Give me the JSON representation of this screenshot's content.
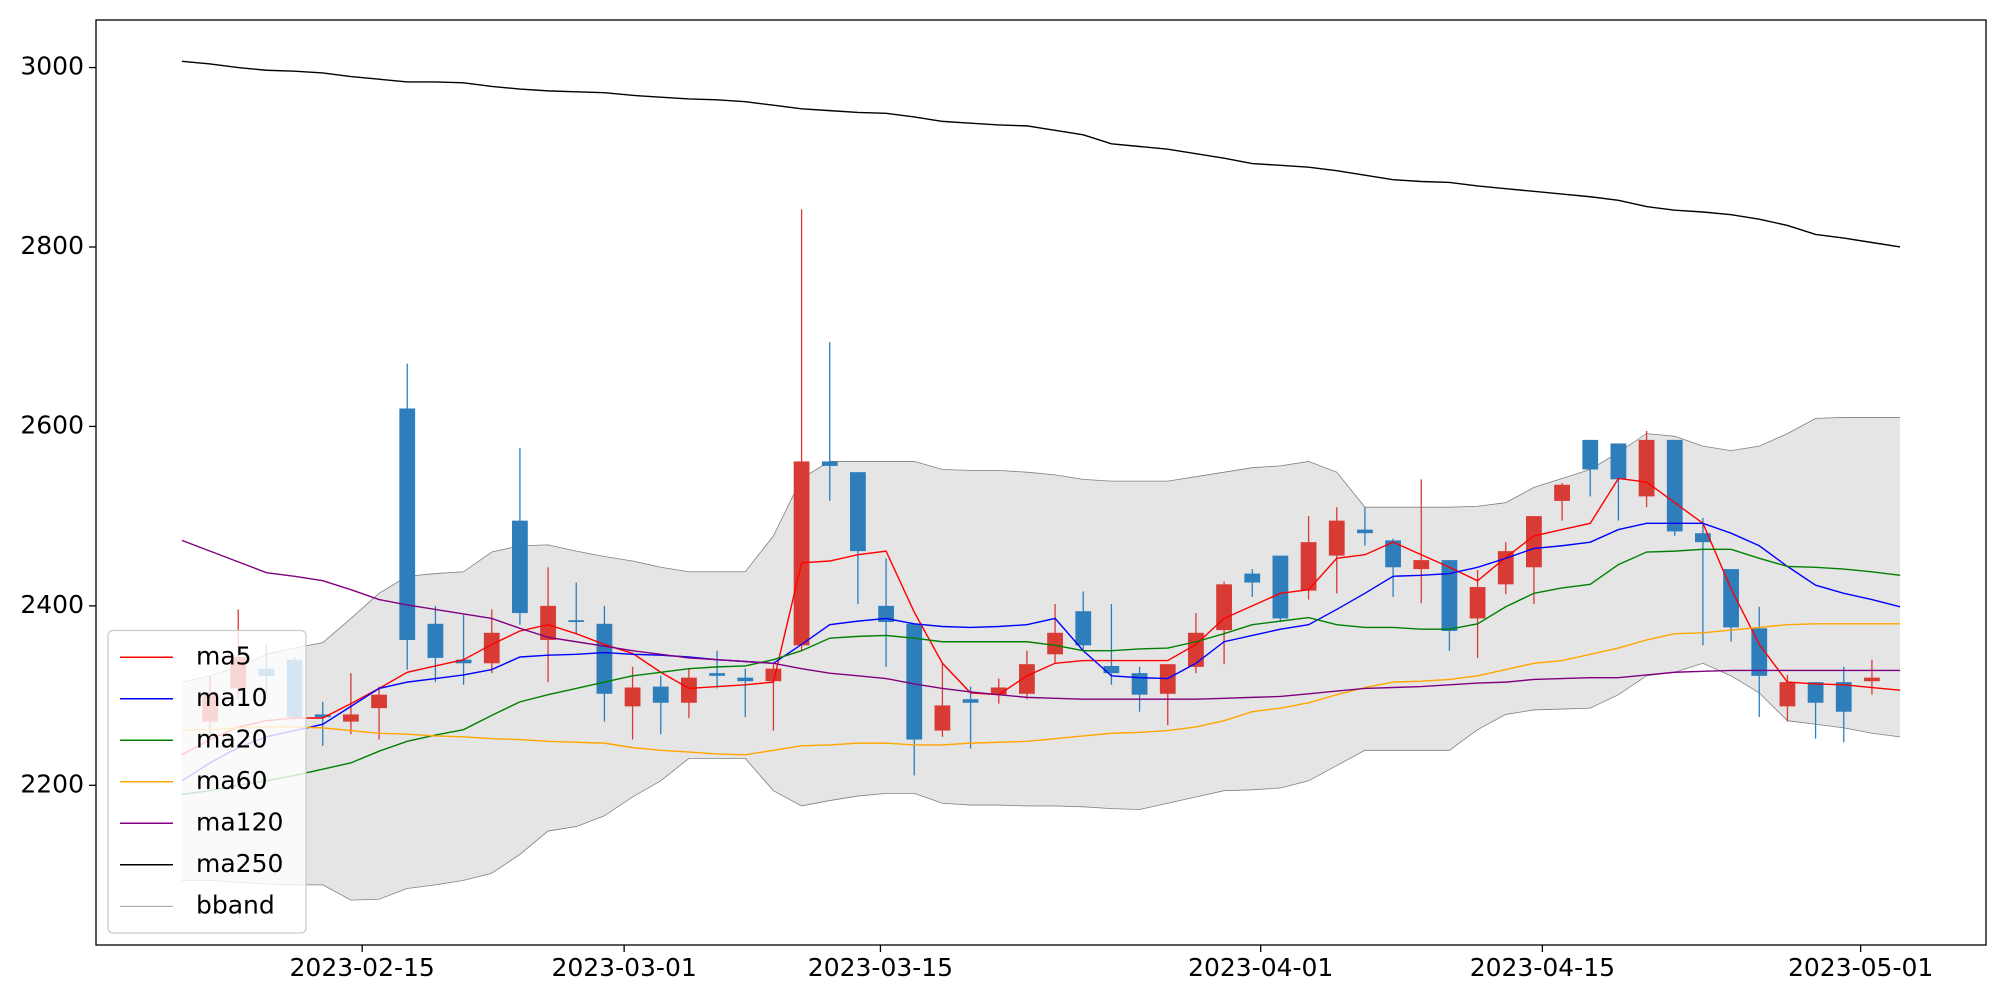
{
  "chart_data": {
    "type": "candlestick",
    "categories": [
      null,
      null,
      null,
      null,
      null,
      null,
      null,
      null,
      null,
      null,
      null,
      null,
      null,
      null,
      null,
      null,
      null,
      null,
      null,
      null,
      null,
      null,
      null,
      null,
      null,
      null,
      null,
      null,
      null,
      null,
      null,
      null,
      null,
      null,
      null,
      null,
      null,
      null,
      null,
      null,
      null,
      null,
      null,
      null,
      null,
      null,
      null,
      null,
      null,
      null,
      null,
      null,
      null,
      null,
      null,
      null,
      null,
      null,
      null,
      null,
      null,
      null
    ],
    "open": [
      null,
      2271,
      2308,
      2330,
      2340,
      2279,
      2271,
      2286,
      2620,
      2380,
      2340,
      2336,
      2495,
      2362,
      2384,
      2380,
      2288,
      2310,
      2292,
      2325,
      2320,
      2316,
      2356,
      2561,
      2549,
      2400,
      2380,
      2261,
      2296,
      2301,
      2302,
      2346,
      2394,
      2333,
      2325,
      2302,
      2332,
      2373,
      2436,
      2456,
      2417,
      2456,
      2485,
      2473,
      2441,
      2451,
      2386,
      2424,
      2443,
      2517,
      2585,
      2581,
      2522,
      2585,
      2481,
      2441,
      2375,
      2288,
      2315,
      2315,
      2316,
      null
    ],
    "high": [
      null,
      2322,
      2396,
      2357,
      2343,
      2293,
      2325,
      2310,
      2670,
      2400,
      2390,
      2396,
      2576,
      2443,
      2426,
      2400,
      2332,
      2322,
      2330,
      2350,
      2330,
      2335,
      2842,
      2694,
      2549,
      2453,
      2380,
      2336,
      2310,
      2319,
      2350,
      2402,
      2416,
      2402,
      2332,
      2335,
      2392,
      2427,
      2441,
      2456,
      2500,
      2510,
      2510,
      2475,
      2541,
      2451,
      2440,
      2471,
      2500,
      2537,
      2585,
      2581,
      2595,
      2585,
      2498,
      2441,
      2399,
      2323,
      2315,
      2332,
      2340,
      null
    ],
    "low": [
      null,
      2258,
      2296,
      2301,
      2272,
      2244,
      2257,
      2251,
      2329,
      2315,
      2312,
      2325,
      2379,
      2315,
      2369,
      2271,
      2251,
      2257,
      2275,
      2308,
      2276,
      2261,
      2350,
      2517,
      2402,
      2332,
      2211,
      2254,
      2241,
      2291,
      2296,
      2336,
      2350,
      2312,
      2282,
      2267,
      2325,
      2335,
      2410,
      2382,
      2407,
      2414,
      2467,
      2410,
      2403,
      2350,
      2342,
      2413,
      2402,
      2495,
      2522,
      2495,
      2510,
      2478,
      2356,
      2360,
      2276,
      2271,
      2252,
      2248,
      2301,
      null
    ],
    "close": [
      null,
      2303,
      2343,
      2322,
      2276,
      2276,
      2279,
      2301,
      2362,
      2342,
      2336,
      2370,
      2392,
      2400,
      2382,
      2302,
      2309,
      2292,
      2320,
      2322,
      2316,
      2330,
      2561,
      2556,
      2461,
      2382,
      2251,
      2289,
      2292,
      2309,
      2335,
      2370,
      2356,
      2325,
      2301,
      2335,
      2370,
      2424,
      2426,
      2386,
      2471,
      2495,
      2481,
      2443,
      2451,
      2372,
      2421,
      2461,
      2500,
      2535,
      2552,
      2541,
      2585,
      2483,
      2471,
      2376,
      2322,
      2315,
      2292,
      2282,
      2320,
      null
    ],
    "up_color": "#d83a34",
    "down_color": "#2e7ebc",
    "series": [
      {
        "name": "ma5",
        "color": "red",
        "values": [
          2234,
          2251,
          2265,
          2272,
          2275,
          2275,
          2291,
          2308,
          2326,
          2333,
          2340,
          2357,
          2372,
          2379,
          2369,
          2357,
          2347,
          2326,
          2308,
          2310,
          2312,
          2315,
          2448,
          2450,
          2457,
          2461,
          2393,
          2336,
          2303,
          2301,
          2322,
          2336,
          2339,
          2339,
          2339,
          2339,
          2357,
          2386,
          2400,
          2414,
          2418,
          2453,
          2457,
          2471,
          2457,
          2443,
          2428,
          2454,
          2478,
          2485,
          2492,
          2542,
          2538,
          2515,
          2492,
          2419,
          2357,
          2315,
          2313,
          2312,
          2309,
          2306
        ]
      },
      {
        "name": "ma10",
        "color": "blue",
        "values": [
          2205,
          2225,
          2242,
          2254,
          2261,
          2268,
          2288,
          2308,
          2315,
          2319,
          2323,
          2329,
          2343,
          2345,
          2346,
          2348,
          2346,
          2345,
          2343,
          2340,
          2338,
          2336,
          2357,
          2379,
          2383,
          2386,
          2380,
          2377,
          2376,
          2377,
          2379,
          2386,
          2350,
          2322,
          2320,
          2319,
          2336,
          2360,
          2367,
          2374,
          2379,
          2396,
          2414,
          2433,
          2434,
          2436,
          2443,
          2453,
          2464,
          2467,
          2471,
          2485,
          2492,
          2492,
          2492,
          2481,
          2467,
          2444,
          2423,
          2414,
          2407,
          2399
        ]
      },
      {
        "name": "ma20",
        "color": "green",
        "values": [
          2190,
          2194,
          2200,
          2205,
          2211,
          2218,
          2225,
          2238,
          2249,
          2256,
          2262,
          2278,
          2293,
          2301,
          2308,
          2315,
          2322,
          2326,
          2330,
          2332,
          2333,
          2340,
          2350,
          2364,
          2366,
          2367,
          2364,
          2360,
          2360,
          2360,
          2360,
          2356,
          2350,
          2350,
          2352,
          2353,
          2360,
          2369,
          2379,
          2383,
          2387,
          2379,
          2376,
          2376,
          2374,
          2374,
          2380,
          2399,
          2414,
          2420,
          2424,
          2446,
          2460,
          2461,
          2463,
          2463,
          2453,
          2444,
          2443,
          2441,
          2438,
          2434
        ]
      },
      {
        "name": "ma60",
        "color": "orange",
        "values": [
          2261,
          2262,
          2264,
          2265,
          2265,
          2264,
          2261,
          2258,
          2257,
          2255,
          2254,
          2252,
          2251,
          2249,
          2248,
          2247,
          2242,
          2239,
          2237,
          2235,
          2234,
          2239,
          2244,
          2245,
          2247,
          2247,
          2245,
          2245,
          2247,
          2248,
          2249,
          2252,
          2255,
          2258,
          2259,
          2261,
          2265,
          2272,
          2282,
          2286,
          2292,
          2301,
          2309,
          2315,
          2316,
          2318,
          2322,
          2329,
          2336,
          2339,
          2346,
          2353,
          2362,
          2369,
          2370,
          2373,
          2376,
          2379,
          2380,
          2380,
          2380,
          2380
        ]
      },
      {
        "name": "ma120",
        "color": "purple",
        "values": [
          2473,
          2461,
          2449,
          2437,
          2433,
          2428,
          2418,
          2407,
          2401,
          2396,
          2391,
          2386,
          2375,
          2365,
          2360,
          2355,
          2350,
          2346,
          2342,
          2340,
          2338,
          2336,
          2330,
          2325,
          2322,
          2319,
          2313,
          2308,
          2304,
          2301,
          2298,
          2297,
          2296,
          2296,
          2296,
          2296,
          2296,
          2297,
          2298,
          2299,
          2302,
          2305,
          2308,
          2309,
          2310,
          2312,
          2314,
          2315,
          2318,
          2319,
          2320,
          2320,
          2323,
          2326,
          2327,
          2328,
          2328,
          2328,
          2328,
          2328,
          2328,
          2328
        ]
      },
      {
        "name": "ma250",
        "color": "black",
        "values": [
          3007,
          3004,
          3000,
          2997,
          2996,
          2994,
          2990,
          2987,
          2984,
          2984,
          2983,
          2979,
          2976,
          2974,
          2973,
          2972,
          2969,
          2967,
          2965,
          2964,
          2962,
          2958,
          2954,
          2952,
          2950,
          2949,
          2945,
          2940,
          2938,
          2936,
          2935,
          2930,
          2925,
          2915,
          2912,
          2909,
          2904,
          2899,
          2893,
          2891,
          2889,
          2885,
          2880,
          2875,
          2873,
          2872,
          2868,
          2865,
          2862,
          2859,
          2856,
          2852,
          2845,
          2841,
          2839,
          2836,
          2831,
          2824,
          2814,
          2810,
          2805,
          2800
        ]
      }
    ],
    "band": {
      "name": "bband",
      "color": "gray",
      "fill": "#e5e5e5",
      "upper": [
        2315,
        2322,
        2332,
        2346,
        2353,
        2359,
        2386,
        2414,
        2433,
        2436,
        2438,
        2460,
        2467,
        2468,
        2461,
        2455,
        2450,
        2443,
        2438,
        2438,
        2438,
        2478,
        2542,
        2561,
        2561,
        2561,
        2561,
        2552,
        2551,
        2551,
        2549,
        2546,
        2541,
        2539,
        2539,
        2539,
        2544,
        2549,
        2554,
        2556,
        2561,
        2549,
        2510,
        2510,
        2510,
        2510,
        2511,
        2515,
        2532,
        2542,
        2552,
        2571,
        2592,
        2589,
        2578,
        2573,
        2578,
        2592,
        2609,
        2610,
        2610,
        2610
      ],
      "lower": [
        2094,
        2094,
        2092,
        2090,
        2089,
        2089,
        2072,
        2073,
        2085,
        2089,
        2094,
        2102,
        2123,
        2149,
        2154,
        2166,
        2187,
        2205,
        2230,
        2230,
        2230,
        2194,
        2177,
        2183,
        2188,
        2191,
        2191,
        2180,
        2178,
        2178,
        2177,
        2177,
        2176,
        2174,
        2173,
        2180,
        2187,
        2194,
        2195,
        2197,
        2205,
        2222,
        2239,
        2239,
        2239,
        2239,
        2262,
        2279,
        2284,
        2285,
        2286,
        2301,
        2322,
        2326,
        2336,
        2322,
        2303,
        2272,
        2268,
        2264,
        2258,
        2254
      ]
    },
    "xlim": [
      -3.05,
      64.05
    ],
    "xticks": [
      {
        "value": 6.4,
        "label": "2023-02-15"
      },
      {
        "value": 15.7,
        "label": "2023-03-01"
      },
      {
        "value": 24.8,
        "label": "2023-03-15"
      },
      {
        "value": 38.3,
        "label": "2023-04-01"
      },
      {
        "value": 48.3,
        "label": "2023-04-15"
      },
      {
        "value": 59.6,
        "label": "2023-05-01"
      }
    ],
    "ylim": [
      2022,
      3053
    ],
    "yticks": [
      2200,
      2400,
      2600,
      2800,
      3000
    ],
    "grid": false,
    "legend": "lower left"
  }
}
